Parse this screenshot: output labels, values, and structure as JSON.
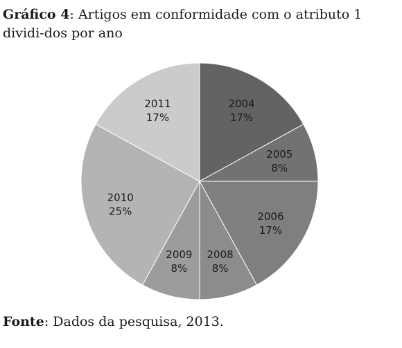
{
  "caption": {
    "prefix": "Gráfico 4",
    "text": ": Artigos em conformidade com o atributo 1 dividi-dos por ano"
  },
  "source": {
    "prefix": "Fonte",
    "text": ": Dados da pesquisa, 2013."
  },
  "chart_data": {
    "type": "pie",
    "slices": [
      {
        "label": "2004",
        "value": 17,
        "display": "17%",
        "color": "#636363"
      },
      {
        "label": "2005",
        "value": 8,
        "display": "8%",
        "color": "#727272"
      },
      {
        "label": "2006",
        "value": 17,
        "display": "17%",
        "color": "#7f7f7f"
      },
      {
        "label": "2008",
        "value": 8,
        "display": "8%",
        "color": "#8c8c8c"
      },
      {
        "label": "2009",
        "value": 8,
        "display": "8%",
        "color": "#9c9c9c"
      },
      {
        "label": "2010",
        "value": 25,
        "display": "25%",
        "color": "#b4b4b4"
      },
      {
        "label": "2011",
        "value": 17,
        "display": "17%",
        "color": "#cbcbcb"
      }
    ]
  }
}
